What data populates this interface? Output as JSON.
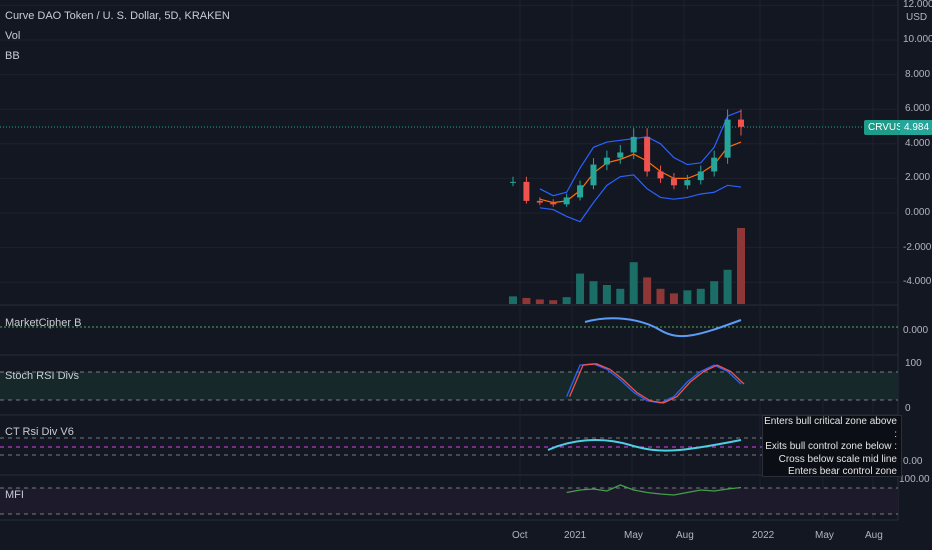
{
  "header": {
    "title": "Curve DAO Token / U. S. Dollar, 5D, KRAKEN",
    "indicator_vol": "Vol",
    "indicator_bb": "BB"
  },
  "panes": {
    "marketcipher": "MarketCipher B",
    "stochrsi": "Stoch RSI Divs",
    "ctrsi": "CT Rsi Div V6",
    "mfi": "MFI"
  },
  "price_axis": {
    "unit": "USD",
    "ticks": [
      "12.000",
      "10.000",
      "8.000",
      "6.000",
      "4.000",
      "2.000",
      "0.000",
      "-2.000",
      "-4.000"
    ]
  },
  "sub_axis": {
    "marketcipher_tick": "0.000",
    "stoch_top": "100",
    "stoch_bottom": "0",
    "ctrsi_tick": "0.00",
    "mfi_tick": "100.00"
  },
  "price_tag": {
    "symbol": "CRVUSD",
    "value": "4.984"
  },
  "tooltip_lines": [
    "Enters bull critical zone above :",
    "Exits bull control zone below :",
    "Cross below scale mid line",
    "Enters bear control zone below :"
  ],
  "time_axis": [
    "Oct",
    "2021",
    "May",
    "Aug",
    "2022",
    "May",
    "Aug"
  ],
  "colors": {
    "background": "#131722",
    "up": "#26a69a",
    "down": "#ef5350",
    "bb_band": "#2962ff",
    "bb_basis": "#ff6d00",
    "stoch_k": "#2962ff",
    "stoch_d": "#ef5350",
    "mfi_line": "#43a047",
    "green_dotted": "#4caf50"
  },
  "chart_data": [
    {
      "type": "candlestick",
      "title": "Curve DAO Token / U. S. Dollar, 5D, KRAKEN",
      "ylabel": "USD",
      "ylim": [
        -5.4,
        12.0
      ],
      "x": [
        "2020-09-20",
        "2020-10-01",
        "2020-11-01",
        "2020-12-01",
        "2021-01-01",
        "2021-01-20",
        "2021-02-10",
        "2021-03-01",
        "2021-04-01",
        "2021-05-01",
        "2021-05-20",
        "2021-06-15",
        "2021-07-01",
        "2021-08-01",
        "2021-09-01",
        "2021-10-01",
        "2021-11-01",
        "2021-11-20"
      ],
      "close": [
        1.8,
        0.7,
        0.6,
        0.5,
        0.9,
        1.6,
        2.8,
        3.2,
        3.5,
        4.4,
        2.4,
        2.0,
        1.6,
        1.9,
        2.4,
        3.2,
        5.4,
        4.98
      ],
      "bb_upper": [
        null,
        null,
        1.4,
        1.0,
        1.2,
        2.6,
        3.8,
        4.1,
        4.2,
        4.3,
        4.4,
        4.0,
        3.2,
        2.8,
        2.9,
        3.8,
        5.6,
        5.9
      ],
      "bb_basis": [
        null,
        null,
        0.8,
        0.6,
        0.7,
        1.3,
        2.3,
        2.9,
        3.1,
        3.4,
        3.0,
        2.4,
        2.0,
        2.0,
        2.3,
        2.8,
        3.8,
        4.1
      ],
      "bb_lower": [
        null,
        null,
        0.3,
        0.2,
        -0.2,
        -0.5,
        0.6,
        1.6,
        2.1,
        2.2,
        1.4,
        0.9,
        0.8,
        0.9,
        1.1,
        1.2,
        1.6,
        1.5
      ]
    },
    {
      "type": "bar",
      "name": "Vol",
      "values": [
        0.1,
        0.08,
        0.06,
        0.05,
        0.09,
        0.4,
        0.3,
        0.25,
        0.2,
        0.55,
        0.35,
        0.2,
        0.14,
        0.18,
        0.2,
        0.3,
        0.45,
        1.0
      ]
    },
    {
      "type": "line",
      "name": "Stoch RSI Divs",
      "ylim": [
        0,
        100
      ],
      "k": [
        null,
        null,
        null,
        null,
        20,
        95,
        98,
        85,
        60,
        30,
        10,
        5,
        20,
        55,
        80,
        95,
        80,
        50
      ]
    },
    {
      "type": "line",
      "name": "MFI",
      "ylim": [
        0,
        100
      ],
      "values": [
        null,
        null,
        null,
        null,
        55,
        60,
        62,
        58,
        70,
        60,
        55,
        52,
        50,
        55,
        60,
        58,
        62,
        65
      ]
    }
  ]
}
